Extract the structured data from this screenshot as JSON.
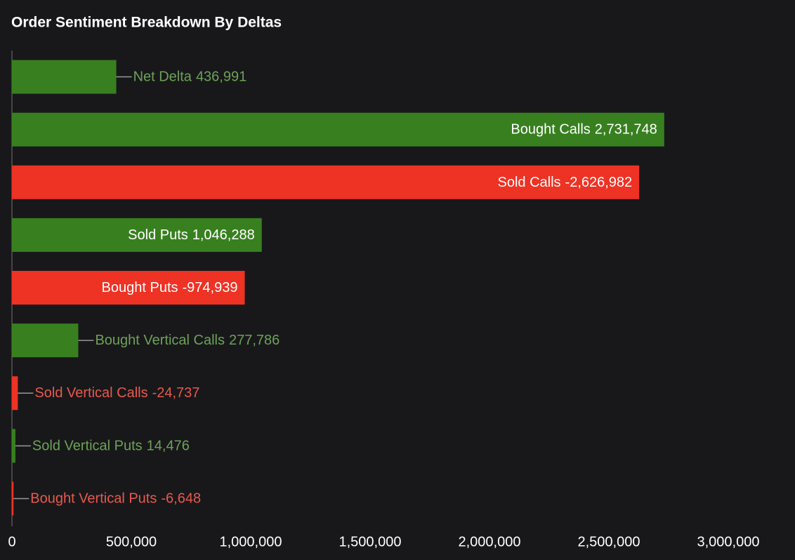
{
  "chart_data": {
    "type": "hbar",
    "title": "Order Sentiment Breakdown By Deltas",
    "categories": [
      "Net Delta",
      "Bought Calls",
      "Sold Calls",
      "Sold Puts",
      "Bought Puts",
      "Bought Vertical Calls",
      "Sold Vertical Calls",
      "Sold Vertical Puts",
      "Bought Vertical Puts"
    ],
    "values": [
      436991,
      2731748,
      -2626982,
      1046288,
      -974939,
      277786,
      -24737,
      14476,
      -6648
    ],
    "value_labels": [
      "436,991",
      "2,731,748",
      "-2,626,982",
      "1,046,288",
      "-974,939",
      "277,786",
      "-24,737",
      "14,476",
      "-6,648"
    ],
    "colors": [
      "#38801f",
      "#38801f",
      "#ee3224",
      "#38801f",
      "#ee3224",
      "#38801f",
      "#ee3224",
      "#38801f",
      "#ee3224"
    ],
    "label_colors": [
      "#6da257",
      "#6da257",
      "#e8594d",
      "#6da257",
      "#e8594d",
      "#6da257",
      "#e8594d",
      "#6da257",
      "#e8594d"
    ],
    "xlim": [
      0,
      3000000
    ],
    "xticks": [
      0,
      {
        "value": 500000,
        "label": "500,000"
      },
      {
        "value": 1000000,
        "label": "1,000,000"
      },
      {
        "value": 1500000,
        "label": "1,500,000"
      },
      {
        "value": 2000000,
        "label": "2,000,000"
      },
      {
        "value": 2500000,
        "label": "2,500,000"
      },
      {
        "value": 3000000,
        "label": "3,000,000"
      }
    ]
  }
}
